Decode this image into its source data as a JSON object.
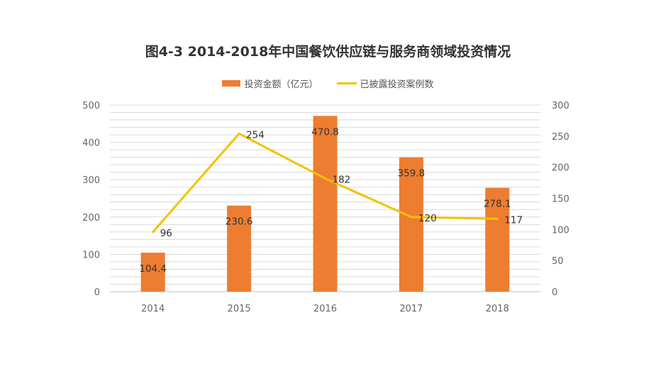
{
  "chart_data": {
    "type": "bar",
    "title": "图4-3  2014-2018年中国餐饮供应链与服务商领域投资情况",
    "categories": [
      "2014",
      "2015",
      "2016",
      "2017",
      "2018"
    ],
    "series": [
      {
        "name": "投资金额（亿元）",
        "type": "bar",
        "axis": "left",
        "values": [
          104.4,
          230.6,
          470.8,
          359.8,
          278.1
        ],
        "labels": [
          "104.4",
          "230.6",
          "470.8",
          "359.8",
          "278.1"
        ]
      },
      {
        "name": "已披露投资案例数",
        "type": "line",
        "axis": "right",
        "values": [
          96,
          254,
          182,
          120,
          117
        ],
        "labels": [
          "96",
          "254",
          "182",
          "120",
          "117"
        ]
      }
    ],
    "ylim_left": [
      0,
      500
    ],
    "ylim_right": [
      0,
      300
    ],
    "yticks_left": [
      "0",
      "100",
      "200",
      "300",
      "400",
      "500"
    ],
    "yticks_right": [
      "0",
      "50",
      "100",
      "150",
      "200",
      "250",
      "300"
    ],
    "grid": true,
    "legend_position": "top-center",
    "colors": {
      "bar": "#ED7D31",
      "line": "#F2C300",
      "grid": "#D9D9D9"
    }
  }
}
